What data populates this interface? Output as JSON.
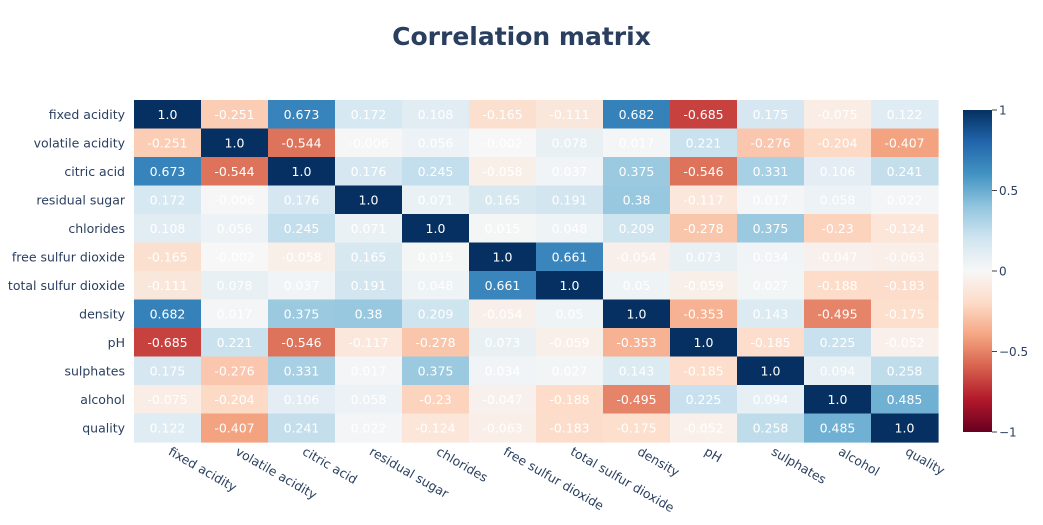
{
  "chart_data": {
    "type": "heatmap",
    "title": "Correlation matrix",
    "xlabel": "",
    "ylabel": "",
    "labels": [
      "fixed acidity",
      "volatile acidity",
      "citric acid",
      "residual sugar",
      "chlorides",
      "free sulfur dioxide",
      "total sulfur dioxide",
      "density",
      "pH",
      "sulphates",
      "alcohol",
      "quality"
    ],
    "matrix": [
      [
        "1.0",
        "-0.251",
        "0.673",
        "0.172",
        "0.108",
        "-0.165",
        "-0.111",
        "0.682",
        "-0.685",
        "0.175",
        "-0.075",
        "0.122"
      ],
      [
        "-0.251",
        "1.0",
        "-0.544",
        "-0.006",
        "0.056",
        "-0.002",
        "0.078",
        "0.017",
        "0.221",
        "-0.276",
        "-0.204",
        "-0.407"
      ],
      [
        "0.673",
        "-0.544",
        "1.0",
        "0.176",
        "0.245",
        "-0.058",
        "0.037",
        "0.375",
        "-0.546",
        "0.331",
        "0.106",
        "0.241"
      ],
      [
        "0.172",
        "-0.006",
        "0.176",
        "1.0",
        "0.071",
        "0.165",
        "0.191",
        "0.38",
        "-0.117",
        "0.017",
        "0.058",
        "0.022"
      ],
      [
        "0.108",
        "0.056",
        "0.245",
        "0.071",
        "1.0",
        "0.015",
        "0.048",
        "0.209",
        "-0.278",
        "0.375",
        "-0.23",
        "-0.124"
      ],
      [
        "-0.165",
        "-0.002",
        "-0.058",
        "0.165",
        "0.015",
        "1.0",
        "0.661",
        "-0.054",
        "0.073",
        "0.034",
        "-0.047",
        "-0.063"
      ],
      [
        "-0.111",
        "0.078",
        "0.037",
        "0.191",
        "0.048",
        "0.661",
        "1.0",
        "0.05",
        "-0.059",
        "0.027",
        "-0.188",
        "-0.183"
      ],
      [
        "0.682",
        "0.017",
        "0.375",
        "0.38",
        "0.209",
        "-0.054",
        "0.05",
        "1.0",
        "-0.353",
        "0.143",
        "-0.495",
        "-0.175"
      ],
      [
        "-0.685",
        "0.221",
        "-0.546",
        "-0.117",
        "-0.278",
        "0.073",
        "-0.059",
        "-0.353",
        "1.0",
        "-0.185",
        "0.225",
        "-0.052"
      ],
      [
        "0.175",
        "-0.276",
        "0.331",
        "0.017",
        "0.375",
        "0.034",
        "0.027",
        "0.143",
        "-0.185",
        "1.0",
        "0.094",
        "0.258"
      ],
      [
        "-0.075",
        "-0.204",
        "0.106",
        "0.058",
        "-0.23",
        "-0.047",
        "-0.188",
        "-0.495",
        "0.225",
        "0.094",
        "1.0",
        "0.485"
      ],
      [
        "0.122",
        "-0.407",
        "0.241",
        "0.022",
        "-0.124",
        "-0.063",
        "-0.183",
        "-0.175",
        "-0.052",
        "0.258",
        "0.485",
        "1.0"
      ]
    ],
    "zlim": [
      -1,
      1
    ],
    "colorscale": "RdBu",
    "colorbar": {
      "ticks": [
        1,
        0.5,
        0,
        -0.5,
        -1
      ],
      "tick_labels": [
        "1",
        "0.5",
        "0",
        "−0.5",
        "−1"
      ]
    },
    "colors": {
      "title": "#2a3f5f",
      "axis_text": "#2a3f5f",
      "cell_text": "#ffffff"
    }
  }
}
